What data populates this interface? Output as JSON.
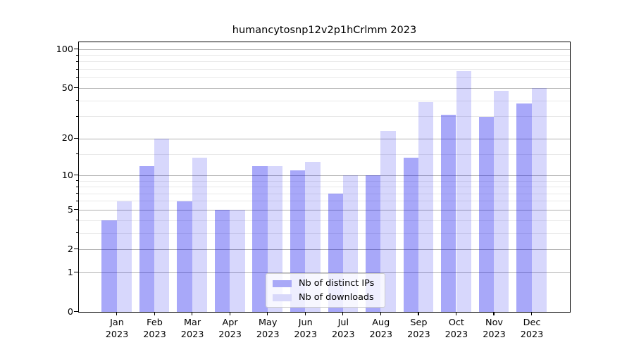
{
  "title": "humancytosnp12v2p1hCrlmm 2023",
  "chart_data": {
    "type": "bar",
    "title": "humancytosnp12v2p1hCrlmm 2023",
    "categories": [
      "Jan 2023",
      "Feb 2023",
      "Mar 2023",
      "Apr 2023",
      "May 2023",
      "Jun 2023",
      "Jul 2023",
      "Aug 2023",
      "Sep 2023",
      "Oct 2023",
      "Nov 2023",
      "Dec 2023"
    ],
    "series": [
      {
        "name": "Nb of distinct IPs",
        "key": "ips",
        "color": "rgba(0,0,238,0.34)",
        "color_solid": "#a9a9f7",
        "values": [
          4,
          12,
          6,
          5,
          12,
          11,
          7,
          10,
          14,
          31,
          30,
          38
        ]
      },
      {
        "name": "Nb of downloads",
        "key": "downloads",
        "color": "rgba(0,0,238,0.155)",
        "color_solid": "#d8d8fa",
        "values": [
          6,
          20,
          14,
          5,
          12,
          13,
          10,
          23,
          39,
          68,
          48,
          50
        ]
      }
    ],
    "xlabel": "",
    "ylabel": "",
    "yscale": "log1p",
    "ylim": [
      0,
      113
    ],
    "yticks": [
      0,
      1,
      2,
      5,
      10,
      20,
      50,
      100
    ],
    "ytick_labels": [
      "0",
      "1",
      "2",
      "5",
      "10",
      "20",
      "50",
      "100"
    ],
    "minor_yticks": [
      3,
      4,
      6,
      7,
      8,
      9,
      15,
      30,
      40,
      60,
      70,
      80,
      90
    ],
    "grid": true,
    "legend_position": "lower center",
    "colors": {
      "major_grid": "#b0b0b0",
      "minor_grid": "#e9e9e9",
      "axis": "#000000",
      "background": "#ffffff"
    }
  }
}
